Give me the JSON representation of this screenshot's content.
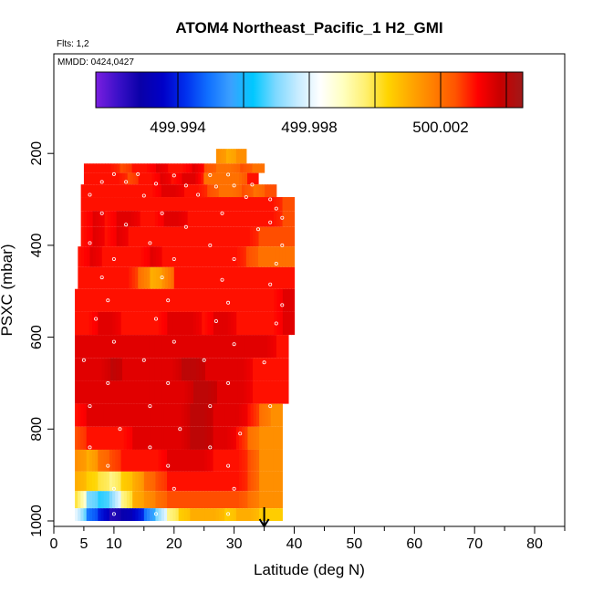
{
  "chart_data": {
    "type": "heatmap",
    "title": "ATOM4 Northeast_Pacific_1 H2_GMI",
    "notes": [
      "Flts: 1,2",
      "MMDD: 0424,0427"
    ],
    "xlabel": "Latitude (deg N)",
    "ylabel": "PSXC (mbar)",
    "xlim": [
      0,
      85
    ],
    "ylim": [
      1000,
      0
    ],
    "x_ticks": [
      0,
      5,
      10,
      20,
      30,
      40,
      50,
      60,
      70,
      80
    ],
    "y_ticks": [
      200,
      400,
      600,
      800,
      1000
    ],
    "colorbar": {
      "range": [
        499.9915,
        500.0045
      ],
      "tick_labels": [
        "499.994",
        "499.998",
        "500.002"
      ],
      "tick_values": [
        499.994,
        499.998,
        500.002
      ],
      "colors": [
        "#7a1fe0",
        "#3a10c8",
        "#0a00a8",
        "#0000c8",
        "#0030ee",
        "#1070ff",
        "#3ba0ff",
        "#00c8ff",
        "#7cd8ff",
        "#c8ecff",
        "#ffffff",
        "#ffffc0",
        "#fff070",
        "#ffd400",
        "#ffa800",
        "#ff8000",
        "#ff5400",
        "#ff0000",
        "#c80000",
        "#a01818"
      ]
    },
    "marker_latitude": 35,
    "rows": [
      {
        "p": 205,
        "lat": [
          27,
          32
        ],
        "v": [
          500.0015,
          500.001,
          500.0015
        ]
      },
      {
        "p": 230,
        "lat": [
          5,
          35
        ],
        "v": [
          500.003,
          500.003,
          500.003,
          500.0025,
          500.003,
          500.003,
          500.0035,
          500.003,
          500.003,
          500.0035,
          500.0025,
          500.002,
          500.002,
          500.0025,
          500.002
        ]
      },
      {
        "p": 255,
        "lat": [
          5,
          34
        ],
        "v": [
          500.003,
          500.003,
          500.003,
          500.003,
          500.0025,
          500.003,
          500.003,
          500.0035,
          500.003,
          500.0035,
          500.0035,
          500.002,
          500.002,
          500.002,
          500.002,
          500.003
        ]
      },
      {
        "p": 280,
        "lat": [
          4.5,
          37
        ],
        "v": [
          500.003,
          500.003,
          500.003,
          500.003,
          500.003,
          500.003,
          500.003,
          500.0035,
          500.0035,
          500.003,
          500.003,
          500.0025,
          500.002,
          500.002,
          500.0025,
          500.002,
          500.0025
        ]
      },
      {
        "p": 310,
        "lat": [
          4.5,
          40
        ],
        "v": [
          500.003,
          500.003,
          500.003,
          500.003,
          500.003,
          500.003,
          500.003,
          500.003,
          500.003,
          500.003,
          500.003,
          500.003,
          500.003,
          500.003,
          500.003,
          500.003,
          500.003,
          500.0025
        ]
      },
      {
        "p": 340,
        "lat": [
          4.5,
          40
        ],
        "v": [
          500.003,
          500.0035,
          500.003,
          500.0035,
          500.0035,
          500.003,
          500.003,
          500.0035,
          500.0035,
          500.003,
          500.003,
          500.003,
          500.003,
          500.003,
          500.003,
          500.003,
          500.003,
          500.0025
        ]
      },
      {
        "p": 380,
        "lat": [
          4.5,
          40
        ],
        "v": [
          500.003,
          500.0035,
          500.003,
          500.0035,
          500.003,
          500.003,
          500.003,
          500.003,
          500.003,
          500.003,
          500.003,
          500.003,
          500.003,
          500.003,
          500.003,
          500.0025,
          500.0025,
          500.0025
        ]
      },
      {
        "p": 425,
        "lat": [
          4,
          40
        ],
        "v": [
          500.003,
          500.0035,
          500.003,
          500.003,
          500.003,
          500.003,
          500.0035,
          500.003,
          500.003,
          500.003,
          500.003,
          500.003,
          500.003,
          500.003,
          500.0025,
          500.002,
          500.002,
          500.002
        ]
      },
      {
        "p": 470,
        "lat": [
          4,
          40
        ],
        "v": [
          500.003,
          500.003,
          500.003,
          500.003,
          500.003,
          500.002,
          500.001,
          500.0015,
          500.003,
          500.003,
          500.003,
          500.003,
          500.003,
          500.003,
          500.003,
          500.003,
          500.003,
          500.003
        ]
      },
      {
        "p": 520,
        "lat": [
          3.5,
          40
        ],
        "v": [
          500.003,
          500.003,
          500.003,
          500.003,
          500.003,
          500.003,
          500.003,
          500.003,
          500.003,
          500.003,
          500.003,
          500.003,
          500.003,
          500.003,
          500.003,
          500.003,
          500.003,
          500.003,
          500.0035
        ]
      },
      {
        "p": 570,
        "lat": [
          3.5,
          40
        ],
        "v": [
          500.003,
          500.003,
          500.0035,
          500.0035,
          500.003,
          500.003,
          500.003,
          500.003,
          500.0035,
          500.0035,
          500.0035,
          500.003,
          500.0035,
          500.0035,
          500.003,
          500.003,
          500.003,
          500.003,
          500.0035
        ]
      },
      {
        "p": 620,
        "lat": [
          3.5,
          39
        ],
        "v": [
          500.0035,
          500.0035,
          500.0035,
          500.0035,
          500.0035,
          500.0035,
          500.0035,
          500.0035,
          500.0035,
          500.0035,
          500.0035,
          500.0035,
          500.0035,
          500.0035,
          500.0035,
          500.0035,
          500.0035,
          500.003
        ]
      },
      {
        "p": 670,
        "lat": [
          3.5,
          39
        ],
        "v": [
          500.0035,
          500.0035,
          500.0035,
          500.004,
          500.0035,
          500.0035,
          500.0035,
          500.0035,
          500.0035,
          500.004,
          500.004,
          500.0035,
          500.0035,
          500.0035,
          500.0035,
          500.003,
          500.003,
          500.003
        ]
      },
      {
        "p": 720,
        "lat": [
          3.5,
          39
        ],
        "v": [
          500.0035,
          500.0035,
          500.0035,
          500.0035,
          500.0035,
          500.0035,
          500.0035,
          500.0035,
          500.0035,
          500.0035,
          500.004,
          500.004,
          500.0035,
          500.0035,
          500.0035,
          500.003,
          500.003,
          500.003
        ]
      },
      {
        "p": 770,
        "lat": [
          3.5,
          38
        ],
        "v": [
          500.003,
          500.0035,
          500.0035,
          500.0035,
          500.0035,
          500.0035,
          500.0035,
          500.0035,
          500.0035,
          500.0035,
          500.004,
          500.004,
          500.0035,
          500.0035,
          500.0035,
          500.003,
          500.002,
          500.0015
        ]
      },
      {
        "p": 820,
        "lat": [
          3.5,
          38
        ],
        "v": [
          500.0025,
          500.003,
          500.003,
          500.003,
          500.003,
          500.0035,
          500.0035,
          500.0035,
          500.0035,
          500.0035,
          500.004,
          500.004,
          500.0035,
          500.0035,
          500.003,
          500.002,
          500.0015,
          500.0015
        ]
      },
      {
        "p": 870,
        "lat": [
          3.5,
          38
        ],
        "v": [
          500.0015,
          500.001,
          500.002,
          500.0025,
          500.003,
          500.003,
          500.003,
          500.003,
          500.0035,
          500.0035,
          500.0035,
          500.0035,
          500.003,
          500.003,
          500.003,
          500.0025,
          500.0015,
          500.0015
        ]
      },
      {
        "p": 915,
        "lat": [
          3.5,
          38
        ],
        "v": [
          500.001,
          500.0005,
          500.0,
          499.9995,
          500.0005,
          500.001,
          500.002,
          500.0025,
          500.003,
          500.003,
          500.003,
          500.003,
          500.003,
          500.003,
          500.003,
          500.0025,
          500.0015,
          500.0015
        ]
      },
      {
        "p": 955,
        "lat": [
          3.5,
          38
        ],
        "v": [
          500.0,
          499.997,
          499.9965,
          499.997,
          499.9995,
          500.001,
          500.0015,
          500.002,
          500.0025,
          500.0025,
          500.0025,
          500.0025,
          500.0025,
          500.0025,
          500.0025,
          500.002,
          500.0015,
          500.0015
        ]
      },
      {
        "p": 990,
        "lat": [
          3.5,
          38
        ],
        "v": [
          499.998,
          499.995,
          499.994,
          499.9925,
          499.993,
          499.9935,
          499.995,
          499.997,
          499.9995,
          500.0005,
          500.001,
          500.001,
          500.001,
          500.0005,
          500.001,
          500.001,
          500.0005,
          500.0005
        ]
      }
    ],
    "obs_points": [
      [
        10,
        245
      ],
      [
        14,
        245
      ],
      [
        20,
        248
      ],
      [
        26,
        247
      ],
      [
        29,
        246
      ],
      [
        8,
        262
      ],
      [
        12,
        262
      ],
      [
        17,
        266
      ],
      [
        22,
        270
      ],
      [
        27,
        272
      ],
      [
        30,
        270
      ],
      [
        33,
        268
      ],
      [
        6,
        290
      ],
      [
        15,
        292
      ],
      [
        24,
        290
      ],
      [
        32,
        295
      ],
      [
        36,
        300
      ],
      [
        37,
        320
      ],
      [
        38,
        340
      ],
      [
        8,
        330
      ],
      [
        18,
        330
      ],
      [
        28,
        330
      ],
      [
        36,
        350
      ],
      [
        12,
        355
      ],
      [
        22,
        360
      ],
      [
        34,
        365
      ],
      [
        6,
        395
      ],
      [
        16,
        395
      ],
      [
        26,
        400
      ],
      [
        38,
        400
      ],
      [
        10,
        430
      ],
      [
        20,
        430
      ],
      [
        30,
        430
      ],
      [
        37,
        440
      ],
      [
        8,
        470
      ],
      [
        18,
        470
      ],
      [
        28,
        475
      ],
      [
        36,
        485
      ],
      [
        9,
        520
      ],
      [
        19,
        520
      ],
      [
        29,
        525
      ],
      [
        38,
        530
      ],
      [
        7,
        560
      ],
      [
        17,
        560
      ],
      [
        27,
        565
      ],
      [
        37,
        570
      ],
      [
        10,
        610
      ],
      [
        20,
        610
      ],
      [
        30,
        615
      ],
      [
        5,
        650
      ],
      [
        15,
        650
      ],
      [
        25,
        650
      ],
      [
        35,
        655
      ],
      [
        9,
        700
      ],
      [
        19,
        700
      ],
      [
        29,
        700
      ],
      [
        6,
        750
      ],
      [
        16,
        750
      ],
      [
        26,
        750
      ],
      [
        36,
        750
      ],
      [
        11,
        800
      ],
      [
        21,
        800
      ],
      [
        31,
        810
      ],
      [
        6,
        840
      ],
      [
        16,
        840
      ],
      [
        26,
        840
      ],
      [
        9,
        880
      ],
      [
        19,
        880
      ],
      [
        29,
        880
      ],
      [
        10,
        930
      ],
      [
        20,
        930
      ],
      [
        30,
        930
      ],
      [
        10,
        985
      ],
      [
        17,
        985
      ],
      [
        29,
        985
      ]
    ]
  }
}
